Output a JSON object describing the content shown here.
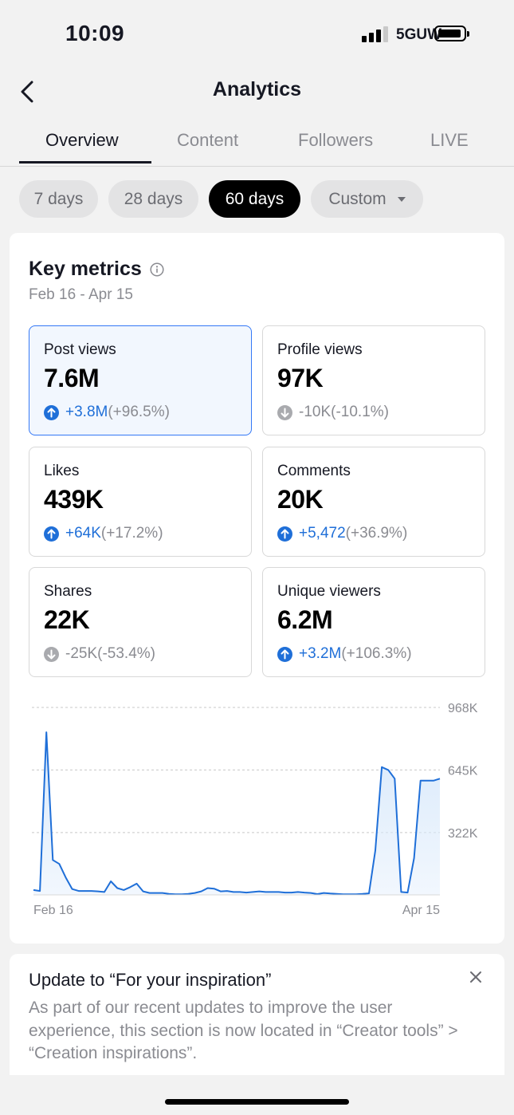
{
  "status_bar": {
    "time": "10:09",
    "network": "5GUW"
  },
  "nav": {
    "title": "Analytics",
    "back_icon": "chevron-left-icon"
  },
  "tabs": [
    {
      "label": "Overview",
      "active": true
    },
    {
      "label": "Content",
      "active": false
    },
    {
      "label": "Followers",
      "active": false
    },
    {
      "label": "LIVE",
      "active": false
    }
  ],
  "date_filters": [
    {
      "label": "7 days",
      "active": false
    },
    {
      "label": "28 days",
      "active": false
    },
    {
      "label": "60 days",
      "active": true
    },
    {
      "label": "Custom",
      "active": false,
      "dropdown": true
    }
  ],
  "key_metrics": {
    "title": "Key metrics",
    "date_range": "Feb 16 - Apr 15",
    "items": [
      {
        "label": "Post views",
        "value": "7.6M",
        "delta": "+3.8M",
        "pct": "(+96.5%)",
        "trend": "up",
        "selected": true
      },
      {
        "label": "Profile views",
        "value": "97K",
        "delta": "-10K",
        "pct": "(-10.1%)",
        "trend": "down",
        "selected": false
      },
      {
        "label": "Likes",
        "value": "439K",
        "delta": "+64K",
        "pct": "(+17.2%)",
        "trend": "up",
        "selected": false
      },
      {
        "label": "Comments",
        "value": "20K",
        "delta": "+5,472",
        "pct": "(+36.9%)",
        "trend": "up",
        "selected": false
      },
      {
        "label": "Shares",
        "value": "22K",
        "delta": "-25K",
        "pct": "(-53.4%)",
        "trend": "down",
        "selected": false
      },
      {
        "label": "Unique viewers",
        "value": "6.2M",
        "delta": "+3.2M",
        "pct": "(+106.3%)",
        "trend": "up",
        "selected": false
      }
    ]
  },
  "chart_data": {
    "type": "area",
    "series": [
      {
        "values": [
          25,
          20,
          840,
          180,
          160,
          90,
          30,
          20,
          20,
          20,
          18,
          15,
          70,
          35,
          25,
          40,
          58,
          18,
          10,
          10,
          10,
          5,
          3,
          3,
          5,
          10,
          18,
          35,
          32,
          18,
          20,
          15,
          15,
          12,
          15,
          18,
          15,
          15,
          15,
          12,
          12,
          15,
          12,
          10,
          4,
          10,
          7,
          5,
          3,
          3,
          3,
          5,
          8,
          230,
          660,
          645,
          600,
          15,
          12,
          190,
          590,
          590,
          590,
          600
        ]
      }
    ],
    "x_tick_labels": [
      "Feb 16",
      "Apr 15"
    ],
    "y_tick_labels": [
      "968K",
      "645K",
      "322K"
    ],
    "y_ticks": [
      968,
      645,
      322
    ],
    "ylim": [
      0,
      968
    ],
    "grid": true,
    "colors": {
      "line": "#1f6fd8",
      "fill": "#d9e9fb"
    }
  },
  "notice": {
    "title": "Update to “For your inspiration”",
    "body": "As part of our recent updates to improve the user experience, this section is now located in “Creator tools” > “Creation inspirations”."
  },
  "colors": {
    "accent": "#1f6fd8",
    "selected_border": "#3478f6",
    "selected_bg": "#f2f7fe"
  }
}
